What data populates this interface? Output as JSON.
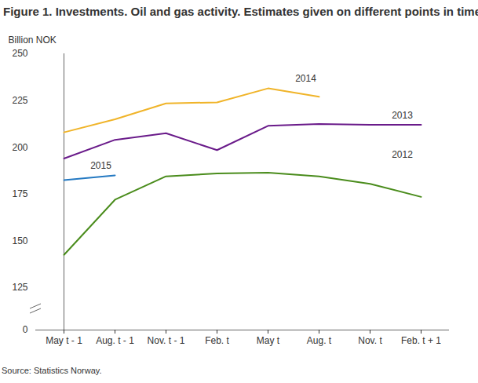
{
  "chart_data": {
    "type": "line",
    "title": "Figure 1. Investments. Oil and gas activity. Estimates given on different points in time",
    "y_label": "Billion NOK",
    "source": "Source: Statistics Norway.",
    "categories": [
      "May t - 1",
      "Aug. t - 1",
      "Nov. t - 1",
      "Feb. t",
      "May t",
      "Aug. t",
      "Nov. t",
      "Feb. t + 1"
    ],
    "series": [
      {
        "name": "2012",
        "color": "#4a8c1c",
        "values": [
          142.5,
          172,
          184.5,
          186,
          186.5,
          184.5,
          180.5,
          173.5
        ]
      },
      {
        "name": "2013",
        "color": "#6a1b8a",
        "values": [
          194,
          204,
          207.5,
          198.5,
          211.5,
          212.5,
          212,
          212
        ]
      },
      {
        "name": "2014",
        "color": "#f0b429",
        "values": [
          208,
          215,
          223.5,
          224,
          231.5,
          227,
          null,
          null
        ]
      },
      {
        "name": "2015",
        "color": "#2479c2",
        "values": [
          182.5,
          185,
          null,
          null,
          null,
          null,
          null,
          null
        ]
      }
    ],
    "ylim": [
      0,
      250
    ],
    "yticks": [
      0,
      125,
      150,
      175,
      200,
      225,
      250
    ],
    "grid": false
  }
}
